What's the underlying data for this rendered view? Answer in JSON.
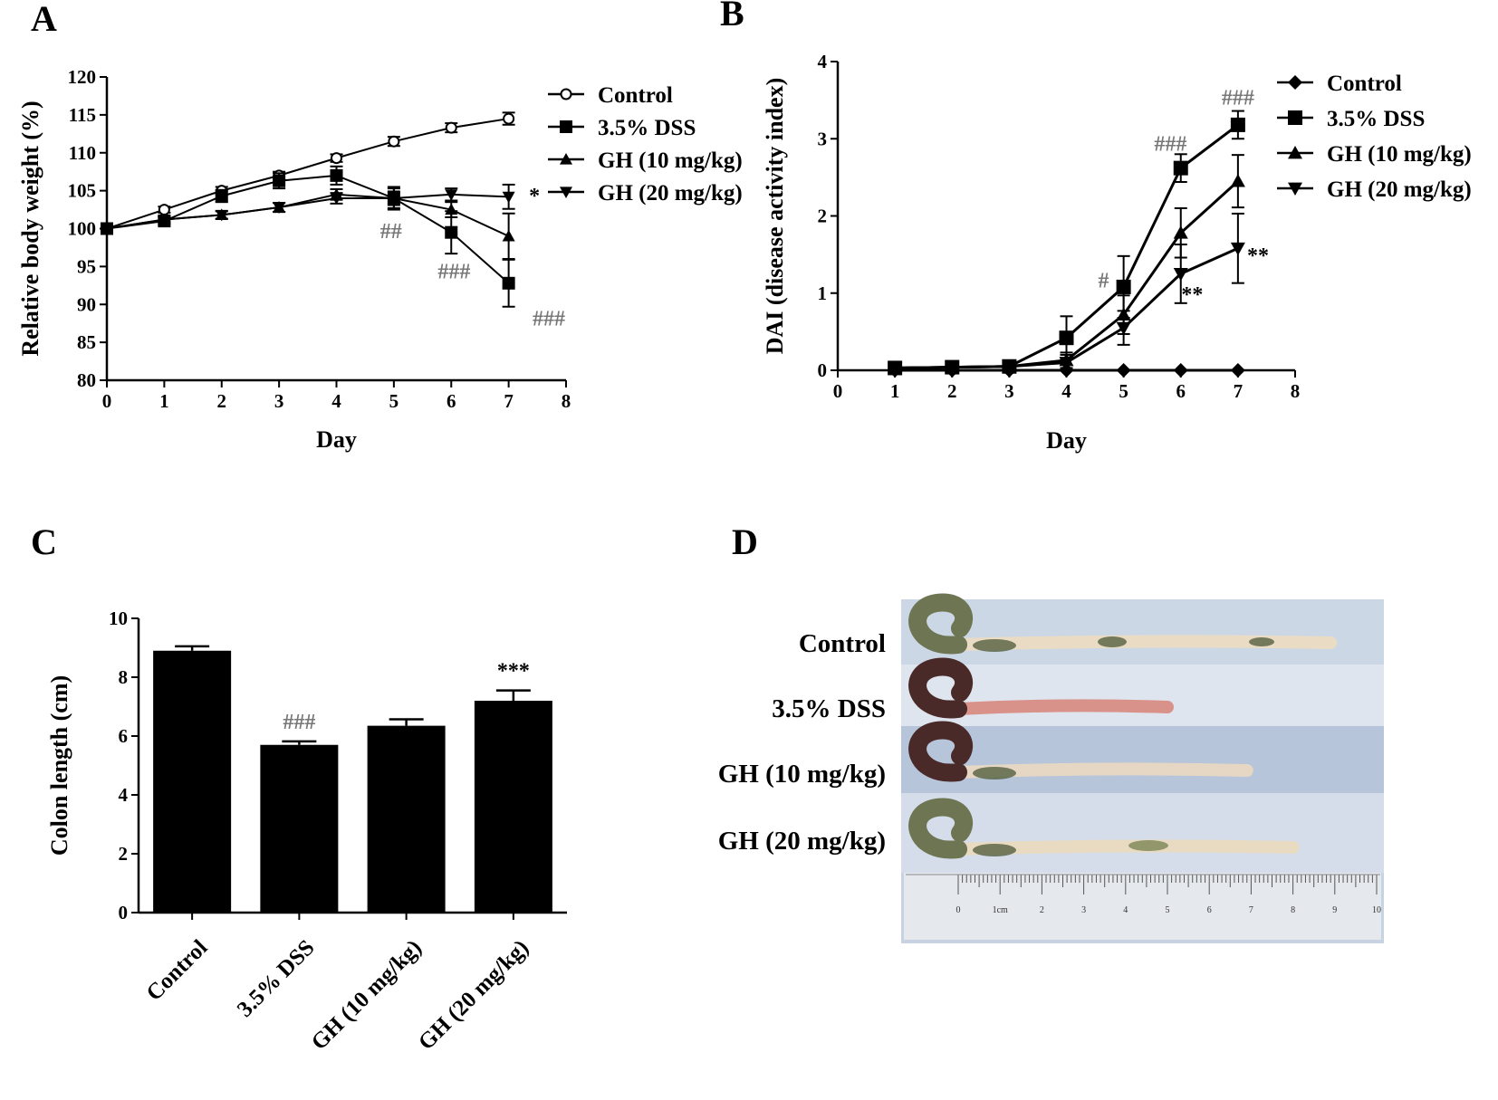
{
  "chart_data": [
    {
      "panel": "A",
      "type": "line",
      "xlabel": "Day",
      "ylabel": "Relative body weight (%)",
      "xlim": [
        0,
        8
      ],
      "ylim": [
        80,
        120
      ],
      "xticks": [
        0,
        1,
        2,
        3,
        4,
        5,
        6,
        7,
        8
      ],
      "yticks": [
        80,
        85,
        90,
        95,
        100,
        105,
        110,
        115,
        120
      ],
      "series": [
        {
          "name": "Control",
          "marker": "circle-open",
          "x": [
            0,
            1,
            2,
            3,
            4,
            5,
            6,
            7
          ],
          "values": [
            100,
            102.5,
            105,
            107,
            109.3,
            111.5,
            113.3,
            114.5
          ],
          "err": [
            0,
            0.4,
            0.5,
            0.5,
            0.5,
            0.6,
            0.6,
            0.8
          ]
        },
        {
          "name": "3.5% DSS",
          "marker": "square",
          "x": [
            0,
            1,
            2,
            3,
            4,
            5,
            6,
            7
          ],
          "values": [
            100,
            101,
            104.3,
            106.3,
            107,
            104,
            99.5,
            92.8
          ],
          "err": [
            0,
            0.5,
            0.8,
            1,
            1.2,
            1.3,
            2.8,
            3.1
          ]
        },
        {
          "name": "GH (10 mg/kg)",
          "marker": "triangle-up",
          "x": [
            0,
            1,
            2,
            3,
            4,
            5,
            6,
            7
          ],
          "values": [
            100,
            101.2,
            101.8,
            102.8,
            104.5,
            104,
            102.5,
            99
          ],
          "err": [
            0,
            0.4,
            0.5,
            0.6,
            0.7,
            1.5,
            1,
            3
          ]
        },
        {
          "name": "GH (20 mg/kg)",
          "marker": "triangle-down",
          "x": [
            0,
            1,
            2,
            3,
            4,
            5,
            6,
            7
          ],
          "values": [
            100,
            101.2,
            101.8,
            102.8,
            104,
            104,
            104.5,
            104.2
          ],
          "err": [
            0,
            0.4,
            0.5,
            0.6,
            0.7,
            0.9,
            0.8,
            1.6
          ]
        }
      ],
      "annotations": [
        {
          "text": "*",
          "x": 7.45,
          "y": 104.5
        },
        {
          "text": "##",
          "x": 4.95,
          "y": 99.8
        },
        {
          "text": "###",
          "x": 6.05,
          "y": 94.5
        },
        {
          "text": "###",
          "x": 7.7,
          "y": 88.3
        }
      ]
    },
    {
      "panel": "B",
      "type": "line",
      "xlabel": "Day",
      "ylabel": "DAI (disease activity index)",
      "xlim": [
        0,
        8
      ],
      "ylim": [
        0,
        4
      ],
      "xticks": [
        0,
        1,
        2,
        3,
        4,
        5,
        6,
        7,
        8
      ],
      "yticks": [
        0,
        1,
        2,
        3,
        4
      ],
      "series": [
        {
          "name": "Control",
          "marker": "diamond",
          "x": [
            1,
            2,
            3,
            4,
            5,
            6,
            7
          ],
          "values": [
            0,
            0,
            0,
            0,
            0,
            0,
            0
          ],
          "err": [
            0,
            0,
            0,
            0,
            0,
            0,
            0
          ]
        },
        {
          "name": "3.5% DSS",
          "marker": "square",
          "x": [
            1,
            2,
            3,
            4,
            5,
            6,
            7
          ],
          "values": [
            0.03,
            0.04,
            0.05,
            0.42,
            1.08,
            2.62,
            3.18
          ],
          "err": [
            0.03,
            0.04,
            0.05,
            0.28,
            0.4,
            0.18,
            0.18
          ]
        },
        {
          "name": "GH (10 mg/kg)",
          "marker": "triangle-up",
          "x": [
            1,
            2,
            3,
            4,
            5,
            6,
            7
          ],
          "values": [
            0.03,
            0.04,
            0.05,
            0.13,
            0.72,
            1.78,
            2.45
          ],
          "err": [
            0.03,
            0.04,
            0.05,
            0.1,
            0.25,
            0.32,
            0.34
          ]
        },
        {
          "name": "GH (20 mg/kg)",
          "marker": "triangle-down",
          "x": [
            1,
            2,
            3,
            4,
            5,
            6,
            7
          ],
          "values": [
            0.03,
            0.04,
            0.05,
            0.1,
            0.55,
            1.25,
            1.58
          ],
          "err": [
            0.03,
            0.04,
            0.05,
            0.1,
            0.22,
            0.38,
            0.45
          ]
        }
      ],
      "annotations": [
        {
          "text": "#",
          "x": 4.65,
          "y": 1.18
        },
        {
          "text": "###",
          "x": 5.82,
          "y": 2.95
        },
        {
          "text": "###",
          "x": 7,
          "y": 3.55
        },
        {
          "text": "**",
          "x": 6.2,
          "y": 1.0
        },
        {
          "text": "**",
          "x": 7.35,
          "y": 1.5
        }
      ]
    },
    {
      "panel": "C",
      "type": "bar",
      "ylabel": "Colon length (cm)",
      "ylim": [
        0,
        10
      ],
      "yticks": [
        0,
        2,
        4,
        6,
        8,
        10
      ],
      "categories": [
        "Control",
        "3.5% DSS",
        "GH (10 mg/kg)",
        "GH (20 mg/kg)"
      ],
      "values": [
        8.9,
        5.7,
        6.35,
        7.2
      ],
      "err": [
        0.15,
        0.12,
        0.22,
        0.35
      ],
      "labels": [
        "",
        "###",
        "",
        "***"
      ]
    }
  ],
  "panel_letters": {
    "a": "A",
    "b": "B",
    "c": "C",
    "d": "D"
  },
  "photo_panel": {
    "rows": [
      "Control",
      "3.5% DSS",
      "GH (10 mg/kg)",
      "GH (20 mg/kg)"
    ],
    "ruler_marks": [
      "0",
      "1cm",
      "2",
      "3",
      "4",
      "5",
      "6",
      "7",
      "8",
      "9",
      "10"
    ],
    "colon_length_ruler_units": [
      8.9,
      5.0,
      6.9,
      8.0
    ],
    "colors": {
      "photo_background": "#c7d3e3",
      "control_colon": "#eadcc4",
      "dss_colon": "#d9928a",
      "gh10_colon": "#e6d7c4",
      "gh20_colon": "#e8dbc2",
      "cecum_green": "#6e7552",
      "cecum_dark": "#4a2a28",
      "ruler": "#e5e9ee"
    }
  }
}
